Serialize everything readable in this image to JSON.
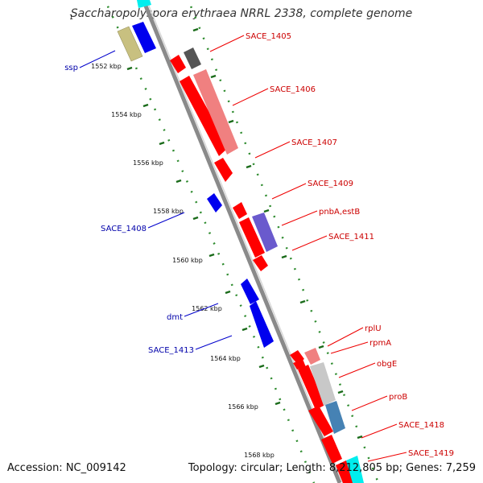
{
  "title": "Saccharopolyspora erythraea NRRL 2338, complete genome",
  "accession": "Accession: NC_009142",
  "summary": "Topology: circular; Length: 8,212,805 bp; Genes: 7,259",
  "scale_ticks": [
    "1552 kbp",
    "1554 kbp",
    "1556 kbp",
    "1558 kbp",
    "1560 kbp",
    "1562 kbp",
    "1564 kbp",
    "1566 kbp",
    "1568 kbp"
  ],
  "colors": {
    "forward": "#ff0000",
    "reverse": "#0000ff",
    "label_forward": "#cc0000",
    "label_reverse": "#0000aa",
    "backbone": "#888888",
    "guide": "#228b22",
    "rna": "#00ffff"
  },
  "gene_labels_forward": [
    "SACE_1405",
    "SACE_1406",
    "SACE_1407",
    "SACE_1409",
    "pnbA,estB",
    "SACE_1411",
    "rplU",
    "rpmA",
    "obgE",
    "proB",
    "SACE_1418",
    "SACE_1419"
  ],
  "gene_labels_reverse": [
    "ssp",
    "SACE_1408",
    "dmt",
    "SACE_1413"
  ]
}
